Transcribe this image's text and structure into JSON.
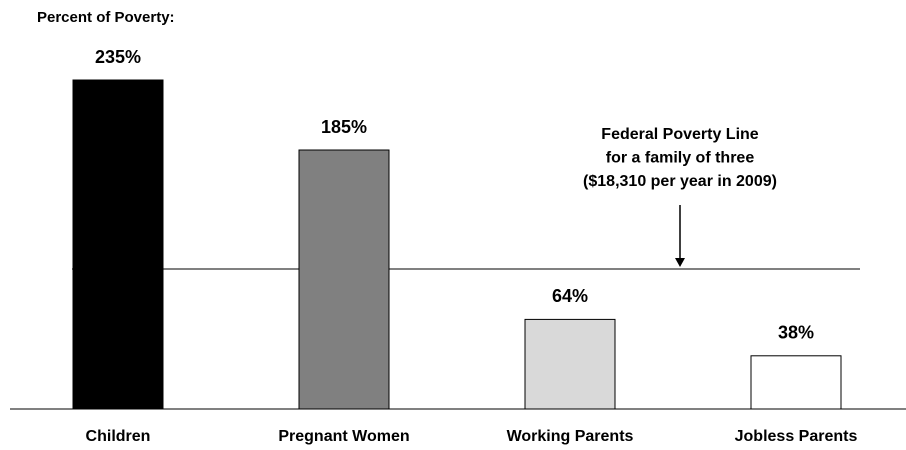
{
  "chart_data": {
    "type": "bar",
    "title": "Percent of Poverty:",
    "categories": [
      "Children",
      "Pregnant Women",
      "Working Parents",
      "Jobless Parents"
    ],
    "values": [
      235,
      185,
      64,
      38
    ],
    "value_labels": [
      "235%",
      "185%",
      "64%",
      "38%"
    ],
    "colors": [
      "#000000",
      "#808080",
      "#d9d9d9",
      "#ffffff"
    ],
    "ylim": [
      0,
      250
    ],
    "reference_line": {
      "value": 100,
      "label": [
        "Federal Poverty Line",
        "for a family of three",
        "($18,310 per year in 2009)"
      ]
    }
  }
}
